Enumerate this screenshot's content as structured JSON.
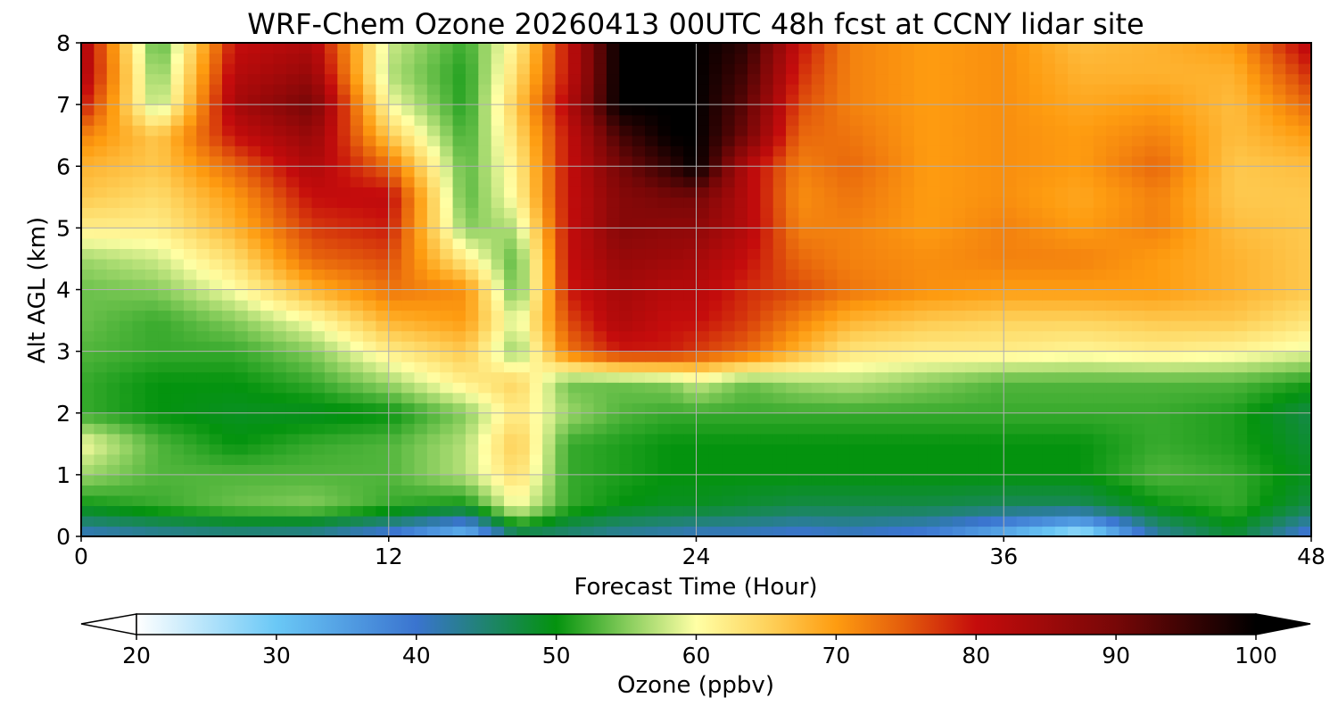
{
  "chart_data": {
    "type": "heatmap",
    "title": "WRF-Chem Ozone  20260413 00UTC 48h fcst at CCNY lidar site",
    "xlabel": "Forecast Time (Hour)",
    "ylabel": "Alt AGL (km)",
    "xlim": [
      0,
      48
    ],
    "ylim": [
      0,
      8
    ],
    "xticks": [
      0,
      12,
      24,
      36,
      48
    ],
    "yticks": [
      0,
      1,
      2,
      3,
      4,
      5,
      6,
      7,
      8
    ],
    "grid": true,
    "x": [
      0,
      3,
      6,
      9,
      12,
      15,
      17,
      19,
      21,
      23,
      24,
      26,
      28,
      30,
      33,
      36,
      39,
      42,
      45,
      48
    ],
    "y": [
      0,
      0.5,
      1,
      1.5,
      2,
      2.5,
      3,
      3.5,
      4,
      4.5,
      5,
      5.5,
      6,
      6.5,
      7,
      7.5,
      8
    ],
    "z": [
      [
        40,
        42,
        43,
        42,
        38,
        30,
        45,
        44,
        42,
        41,
        40,
        40,
        39,
        40,
        38,
        32,
        24,
        42,
        48,
        38
      ],
      [
        50,
        52,
        54,
        55,
        52,
        50,
        60,
        52,
        50,
        49,
        49,
        48,
        47,
        47,
        47,
        46,
        46,
        50,
        52,
        47
      ],
      [
        56,
        53,
        53,
        53,
        53,
        57,
        64,
        52,
        51,
        50,
        50,
        50,
        50,
        50,
        50,
        50,
        50,
        53,
        52,
        49
      ],
      [
        60,
        53,
        50,
        52,
        53,
        57,
        66,
        52,
        51,
        50,
        50,
        50,
        50,
        50,
        50,
        50,
        50,
        52,
        51,
        48
      ],
      [
        52,
        50,
        49,
        49,
        50,
        55,
        63,
        56,
        53,
        52,
        52,
        52,
        52,
        52,
        52,
        52,
        52,
        52,
        51,
        47
      ],
      [
        52,
        50,
        50,
        52,
        56,
        62,
        65,
        54,
        54,
        55,
        58,
        54,
        56,
        57,
        55,
        53,
        53,
        53,
        53,
        51
      ],
      [
        53,
        52,
        52,
        55,
        62,
        66,
        55,
        73,
        79,
        79,
        77,
        74,
        68,
        63,
        62,
        62,
        61,
        62,
        61,
        59
      ],
      [
        54,
        52,
        55,
        60,
        68,
        70,
        58,
        76,
        83,
        80,
        80,
        77,
        72,
        68,
        66,
        65,
        65,
        66,
        66,
        63
      ],
      [
        54,
        55,
        60,
        68,
        73,
        71,
        53,
        79,
        84,
        82,
        82,
        78,
        76,
        73,
        71,
        70,
        70,
        70,
        68,
        66
      ],
      [
        56,
        58,
        64,
        74,
        76,
        62,
        53,
        80,
        86,
        85,
        84,
        80,
        74,
        72,
        71,
        72,
        72,
        70,
        68,
        66
      ],
      [
        62,
        62,
        68,
        77,
        79,
        55,
        57,
        80,
        88,
        87,
        87,
        82,
        72,
        72,
        70,
        72,
        70,
        72,
        67,
        66
      ],
      [
        66,
        64,
        70,
        80,
        81,
        53,
        61,
        80,
        88,
        90,
        90,
        82,
        71,
        73,
        70,
        71,
        69,
        72,
        66,
        66
      ],
      [
        68,
        66,
        74,
        83,
        74,
        53,
        62,
        80,
        90,
        96,
        100,
        82,
        72,
        74,
        70,
        71,
        70,
        74,
        66,
        67
      ],
      [
        72,
        66,
        80,
        86,
        66,
        52,
        64,
        80,
        94,
        100,
        100,
        90,
        74,
        73,
        70,
        71,
        70,
        72,
        67,
        70
      ],
      [
        80,
        56,
        84,
        90,
        60,
        51,
        66,
        82,
        100,
        100,
        100,
        92,
        76,
        72,
        70,
        71,
        69,
        70,
        67,
        74
      ],
      [
        84,
        54,
        82,
        86,
        57,
        51,
        64,
        80,
        100,
        100,
        100,
        94,
        78,
        72,
        70,
        71,
        68,
        68,
        68,
        78
      ],
      [
        84,
        52,
        80,
        83,
        58,
        52,
        62,
        80,
        100,
        100,
        100,
        96,
        80,
        72,
        70,
        71,
        67,
        68,
        70,
        82
      ]
    ],
    "colorbar": {
      "label": "Ozone  (ppbv)",
      "min": 20,
      "max": 100,
      "ticks": [
        20,
        30,
        40,
        50,
        60,
        70,
        80,
        90,
        100
      ],
      "extend": "both",
      "stops": [
        [
          20,
          "#ffffff"
        ],
        [
          30,
          "#6ac8f6"
        ],
        [
          40,
          "#3a74cf"
        ],
        [
          50,
          "#04930e"
        ],
        [
          55,
          "#85cc5b"
        ],
        [
          60,
          "#ffffa5"
        ],
        [
          65,
          "#fed35d"
        ],
        [
          70,
          "#fe9c10"
        ],
        [
          75,
          "#e35a0c"
        ],
        [
          80,
          "#c50c0c"
        ],
        [
          90,
          "#770707"
        ],
        [
          100,
          "#000000"
        ]
      ]
    }
  }
}
